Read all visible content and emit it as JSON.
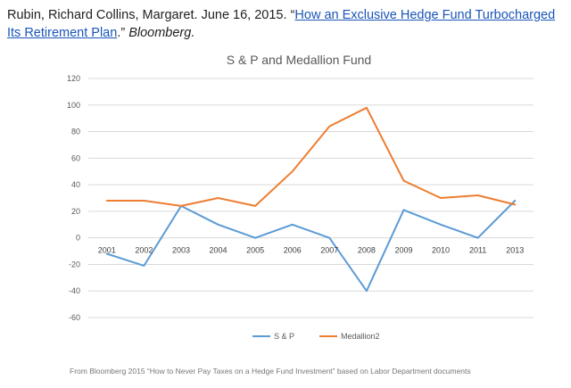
{
  "citation": {
    "authors_date": "Rubin, Richard Collins, Margaret. June 16, 2015. ",
    "open_quote": "“",
    "link_text": "How an Exclusive Hedge Fund Turbocharged Its Retirement Plan",
    "close_quote": ".” ",
    "publication": "Bloomberg."
  },
  "colors": {
    "sp": "#5b9bd5",
    "medallion": "#ed7d31",
    "grid": "#d9d9d9",
    "link": "#1a55b8"
  },
  "footer": {
    "note": "From Bloomberg 2015 “How to Never Pay Taxes on a Hedge Fund Investment” based on Labor Department documents"
  },
  "chart_data": {
    "type": "line",
    "title": "S & P and Medallion Fund",
    "categories": [
      "2001",
      "2002",
      "2003",
      "2004",
      "2005",
      "2006",
      "2007",
      "2008",
      "2009",
      "2010",
      "2011",
      "2013"
    ],
    "series": [
      {
        "name": "S & P",
        "values": [
          -12,
          -21,
          24,
          10,
          0,
          10,
          0,
          -40,
          21,
          10,
          0,
          28
        ]
      },
      {
        "name": "Medallion2",
        "values": [
          28,
          28,
          24,
          30,
          24,
          50,
          84,
          98,
          43,
          30,
          32,
          25
        ]
      }
    ],
    "yticks": [
      "120",
      "100",
      "80",
      "60",
      "40",
      "20",
      "0",
      "-20",
      "-40",
      "-60"
    ],
    "ylim": [
      -60,
      120
    ],
    "ystep": 20,
    "xlabel": "",
    "ylabel": "",
    "grid": true,
    "legend": "bottom"
  }
}
